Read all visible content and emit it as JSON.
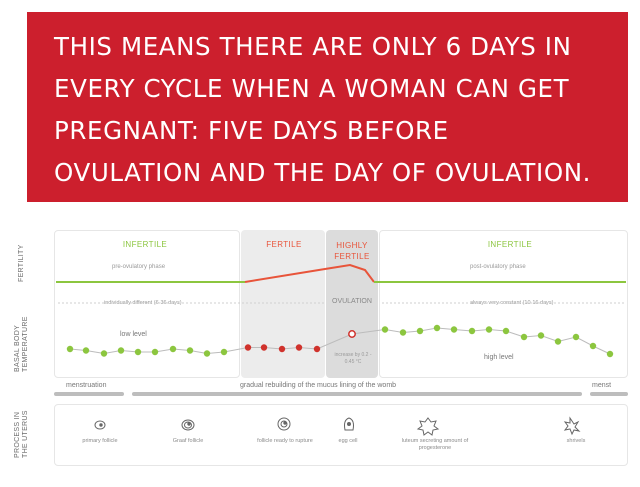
{
  "banner": {
    "lines": [
      "THIS MEANS THERE ARE ONLY 6 DAYS IN",
      "EVERY CYCLE WHEN A WOMAN CAN GET",
      "PREGNANT: FIVE DAYS BEFORE",
      "OVULATION AND THE DAY OF OVULATION."
    ],
    "color": "#cc1f2d"
  },
  "row_labels": {
    "fertility": "FERTILITY",
    "bbt": "BASAL BODY TEMPERATURE",
    "process": "PROCESS IN THE UTERUS"
  },
  "phases": {
    "infertile_1": "INFERTILE",
    "fertile": "FERTILE",
    "highly_fertile": "HIGHLY FERTILE",
    "infertile_2": "INFERTILE",
    "pre_ovulatory": "pre-ovulatory phase",
    "post_ovulatory": "post-ovulatory phase"
  },
  "temperature": {
    "note_left": "individually different (6-36 days)",
    "ovulation": "OVULATION",
    "note_right": "always very constant (10-16 days)",
    "low_level": "low level",
    "high_level": "high level",
    "ovulation_temp": "increase by 0.2 - 0.45 °C"
  },
  "timeline": {
    "menstruation_start": "menstruation",
    "rebuilding": "gradual rebuilding of the mucus lining of the womb",
    "menstruation_end": "menst"
  },
  "process": [
    {
      "label": "primary follicle",
      "icon": "primary-follicle-icon"
    },
    {
      "label": "Graaf follicle",
      "icon": "graaf-follicle-icon"
    },
    {
      "label": "follicle ready to rupture",
      "icon": "rupturing-follicle-icon"
    },
    {
      "label": "egg cell",
      "icon": "egg-cell-icon"
    },
    {
      "label": "luteum secreting amount of progesterone",
      "icon": "corpus-luteum-icon"
    },
    {
      "label": "shrivels",
      "icon": "shrivelled-luteum-icon"
    }
  ],
  "colors": {
    "infertile": "#8cc63f",
    "fertile": "#e8543a",
    "dot_green": "#8cc63f",
    "dot_red": "#d0322c"
  },
  "chart_data": {
    "type": "scatter",
    "series": [
      {
        "name": "low level",
        "values": [
          0.3,
          0.25,
          0.15,
          0.25,
          0.2,
          0.2,
          0.3,
          0.25,
          0.15,
          0.2
        ]
      },
      {
        "name": "fertile",
        "values": [
          0.35,
          0.35,
          0.3,
          0.35,
          0.3
        ]
      },
      {
        "name": "high level",
        "values": [
          0.95,
          0.85,
          0.9,
          1.0,
          0.95,
          0.9,
          0.95,
          0.9,
          0.7,
          0.75,
          0.55,
          0.7,
          0.4
        ]
      }
    ]
  }
}
